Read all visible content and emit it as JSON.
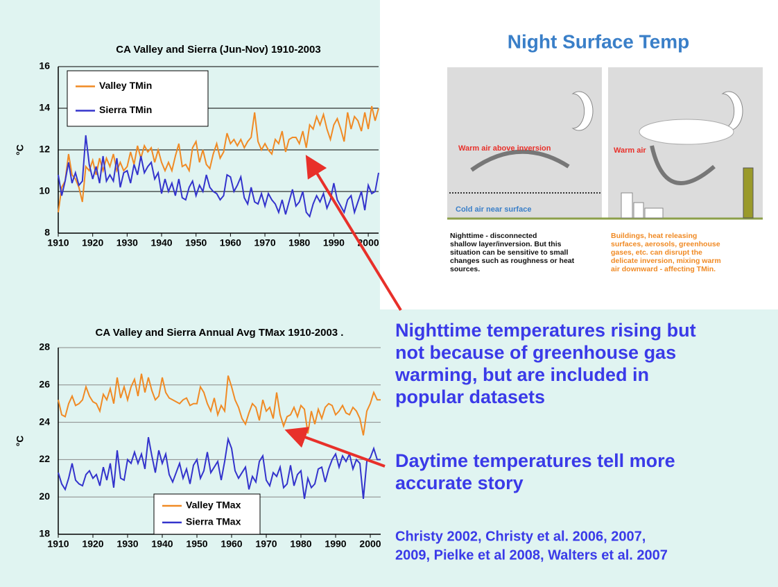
{
  "chart_data": [
    {
      "type": "line",
      "title": "CA Valley and Sierra (Jun-Nov) 1910-2003",
      "y_label": "°C",
      "x": [
        1910,
        1911,
        1912,
        1913,
        1914,
        1915,
        1916,
        1917,
        1918,
        1919,
        1920,
        1921,
        1922,
        1923,
        1924,
        1925,
        1926,
        1927,
        1928,
        1929,
        1930,
        1931,
        1932,
        1933,
        1934,
        1935,
        1936,
        1937,
        1938,
        1939,
        1940,
        1941,
        1942,
        1943,
        1944,
        1945,
        1946,
        1947,
        1948,
        1949,
        1950,
        1951,
        1952,
        1953,
        1954,
        1955,
        1956,
        1957,
        1958,
        1959,
        1960,
        1961,
        1962,
        1963,
        1964,
        1965,
        1966,
        1967,
        1968,
        1969,
        1970,
        1971,
        1972,
        1973,
        1974,
        1975,
        1976,
        1977,
        1978,
        1979,
        1980,
        1981,
        1982,
        1983,
        1984,
        1985,
        1986,
        1987,
        1988,
        1989,
        1990,
        1991,
        1992,
        1993,
        1994,
        1995,
        1996,
        1997,
        1998,
        1999,
        2000,
        2001,
        2002,
        2003
      ],
      "series": [
        {
          "name": "Valley TMin",
          "color": "#f08a24",
          "values": [
            9.0,
            10.2,
            10.5,
            11.8,
            10.8,
            10.6,
            10.2,
            9.5,
            11.2,
            11.0,
            11.5,
            10.8,
            11.6,
            11.0,
            11.6,
            11.2,
            11.8,
            11.0,
            11.4,
            11.0,
            11.2,
            11.9,
            11.3,
            12.2,
            11.6,
            12.2,
            11.9,
            12.1,
            11.4,
            12.0,
            11.4,
            11.0,
            11.4,
            11.0,
            11.7,
            12.3,
            11.2,
            11.3,
            11.0,
            12.1,
            12.4,
            11.4,
            12.0,
            11.3,
            11.1,
            11.8,
            12.3,
            11.6,
            11.9,
            12.8,
            12.3,
            12.5,
            12.2,
            12.5,
            12.1,
            12.4,
            12.6,
            13.8,
            12.4,
            12.0,
            12.3,
            12.0,
            11.8,
            12.5,
            12.3,
            12.9,
            11.9,
            12.5,
            12.6,
            12.6,
            12.3,
            12.9,
            12.1,
            13.2,
            13.0,
            13.6,
            13.2,
            13.7,
            13.0,
            12.5,
            13.2,
            13.5,
            13.0,
            12.4,
            13.8,
            13.0,
            13.6,
            13.4,
            12.9,
            13.8,
            13.0,
            14.1,
            13.4,
            14.0
          ]
        },
        {
          "name": "Sierra TMin",
          "color": "#3333cc",
          "values": [
            10.8,
            9.8,
            10.5,
            11.4,
            10.4,
            10.9,
            10.3,
            10.5,
            12.7,
            11.3,
            10.6,
            11.2,
            10.4,
            11.7,
            10.5,
            10.8,
            10.5,
            11.6,
            10.2,
            10.9,
            11.0,
            10.4,
            11.3,
            10.8,
            11.7,
            10.9,
            11.2,
            11.4,
            10.6,
            10.9,
            9.9,
            10.6,
            10.0,
            10.4,
            9.8,
            10.6,
            9.7,
            9.6,
            10.2,
            10.5,
            9.8,
            10.3,
            10.0,
            10.8,
            10.2,
            10.0,
            9.9,
            9.6,
            9.8,
            10.8,
            10.7,
            10.0,
            10.3,
            10.7,
            9.7,
            9.4,
            10.2,
            9.5,
            9.4,
            9.9,
            9.3,
            9.9,
            9.6,
            9.4,
            9.0,
            9.6,
            8.9,
            9.5,
            10.1,
            9.3,
            9.5,
            10.0,
            9.0,
            8.8,
            9.4,
            9.8,
            9.5,
            9.9,
            9.2,
            9.6,
            10.4,
            9.6,
            9.3,
            9.0,
            9.6,
            9.8,
            9.0,
            9.5,
            10.0,
            9.1,
            10.3,
            9.9,
            10.0,
            10.9
          ]
        }
      ],
      "xlim": [
        1910,
        2003
      ],
      "xticks": [
        1910,
        1920,
        1930,
        1940,
        1950,
        1960,
        1970,
        1980,
        1990,
        2000
      ],
      "ylim": [
        8,
        16
      ],
      "yticks": [
        8,
        10,
        12,
        14,
        16
      ],
      "grid": true,
      "legend": "upper left"
    },
    {
      "type": "line",
      "title": "CA Valley and Sierra Annual Avg TMax 1910-2003 .",
      "y_label": "°C",
      "x": [
        1910,
        1911,
        1912,
        1913,
        1914,
        1915,
        1916,
        1917,
        1918,
        1919,
        1920,
        1921,
        1922,
        1923,
        1924,
        1925,
        1926,
        1927,
        1928,
        1929,
        1930,
        1931,
        1932,
        1933,
        1934,
        1935,
        1936,
        1937,
        1938,
        1939,
        1940,
        1941,
        1942,
        1943,
        1944,
        1945,
        1946,
        1947,
        1948,
        1949,
        1950,
        1951,
        1952,
        1953,
        1954,
        1955,
        1956,
        1957,
        1958,
        1959,
        1960,
        1961,
        1962,
        1963,
        1964,
        1965,
        1966,
        1967,
        1968,
        1969,
        1970,
        1971,
        1972,
        1973,
        1974,
        1975,
        1976,
        1977,
        1978,
        1979,
        1980,
        1981,
        1982,
        1983,
        1984,
        1985,
        1986,
        1987,
        1988,
        1989,
        1990,
        1991,
        1992,
        1993,
        1994,
        1995,
        1996,
        1997,
        1998,
        1999,
        2000,
        2001,
        2002,
        2003
      ],
      "series": [
        {
          "name": "Valley TMax",
          "color": "#f08a24",
          "values": [
            25.2,
            24.4,
            24.3,
            25.0,
            25.4,
            24.9,
            25.0,
            25.2,
            25.9,
            25.4,
            25.1,
            25.0,
            24.6,
            25.5,
            25.2,
            25.8,
            25.0,
            26.4,
            25.3,
            25.9,
            25.2,
            25.9,
            26.3,
            25.4,
            26.6,
            25.6,
            26.4,
            25.7,
            25.2,
            25.4,
            26.4,
            25.6,
            25.3,
            25.2,
            25.1,
            25.0,
            25.2,
            25.3,
            24.9,
            25.0,
            25.0,
            25.9,
            25.6,
            25.0,
            24.6,
            25.3,
            24.4,
            24.9,
            24.6,
            26.5,
            25.9,
            25.2,
            24.8,
            24.2,
            23.9,
            24.5,
            25.0,
            24.8,
            24.1,
            25.2,
            24.6,
            24.8,
            24.2,
            25.6,
            24.4,
            23.8,
            24.3,
            24.4,
            24.8,
            24.3,
            24.9,
            24.7,
            23.4,
            24.6,
            23.9,
            24.7,
            24.2,
            24.8,
            25.0,
            24.9,
            24.4,
            24.6,
            24.9,
            24.5,
            24.4,
            24.8,
            24.6,
            24.2,
            23.3,
            24.6,
            25.0,
            25.6,
            25.2,
            25.2
          ]
        },
        {
          "name": "Sierra TMax",
          "color": "#3333cc",
          "values": [
            21.3,
            20.7,
            20.4,
            21.0,
            21.8,
            20.9,
            20.7,
            20.6,
            21.2,
            21.4,
            21.0,
            21.2,
            20.6,
            21.6,
            20.9,
            21.8,
            20.5,
            22.5,
            21.0,
            20.9,
            22.0,
            21.8,
            22.4,
            21.8,
            22.3,
            21.5,
            23.2,
            22.2,
            21.3,
            22.5,
            21.8,
            22.3,
            21.2,
            20.8,
            21.3,
            21.8,
            21.0,
            21.5,
            20.7,
            21.7,
            22.0,
            21.0,
            21.4,
            22.4,
            21.3,
            21.6,
            21.9,
            20.9,
            21.9,
            23.1,
            22.6,
            21.4,
            21.0,
            21.3,
            21.6,
            20.4,
            21.1,
            20.8,
            21.9,
            22.2,
            20.9,
            20.6,
            21.3,
            21.1,
            21.6,
            20.5,
            20.7,
            21.7,
            20.6,
            21.2,
            21.4,
            19.9,
            21.0,
            20.5,
            20.7,
            21.5,
            21.6,
            20.8,
            21.5,
            22.0,
            22.3,
            21.6,
            22.2,
            21.9,
            22.3,
            21.5,
            22.0,
            21.8,
            19.9,
            21.9,
            22.1,
            22.6,
            22.0,
            22.0
          ]
        }
      ],
      "xlim": [
        1910,
        2003
      ],
      "xticks": [
        1910,
        1920,
        1930,
        1940,
        1950,
        1960,
        1970,
        1980,
        1990,
        2000
      ],
      "ylim": [
        18,
        28
      ],
      "yticks": [
        18,
        20,
        22,
        24,
        26,
        28
      ],
      "grid": true,
      "legend": "lower center"
    }
  ],
  "diagram": {
    "title": "Night Surface Temp",
    "left": {
      "warm_label": "Warm air above inversion",
      "cold_label": "Cold air near surface",
      "caption": [
        "Nighttime - disconnected",
        "shallow layer/inversion. But this",
        "situation can be sensitive to small",
        "changes such as roughness or heat",
        "sources."
      ]
    },
    "right": {
      "warm_label": "Warm air",
      "caption": [
        "Buildings, heat releasing",
        "surfaces, aerosols, greenhouse",
        "gases, etc. can disrupt the",
        "delicate inversion, mixing warm",
        "air downward - affecting TMin."
      ]
    }
  },
  "notes": {
    "night": [
      "Nighttime temperatures rising but",
      "not because of greenhouse gas",
      "warming, but are included in",
      "popular datasets"
    ],
    "day": [
      "Daytime temperatures tell more",
      "accurate story"
    ],
    "citation": [
      "Christy 2002, Christy et al. 2006, 2007,",
      "2009, Pielke et al 2008, Walters et al. 2007"
    ]
  }
}
